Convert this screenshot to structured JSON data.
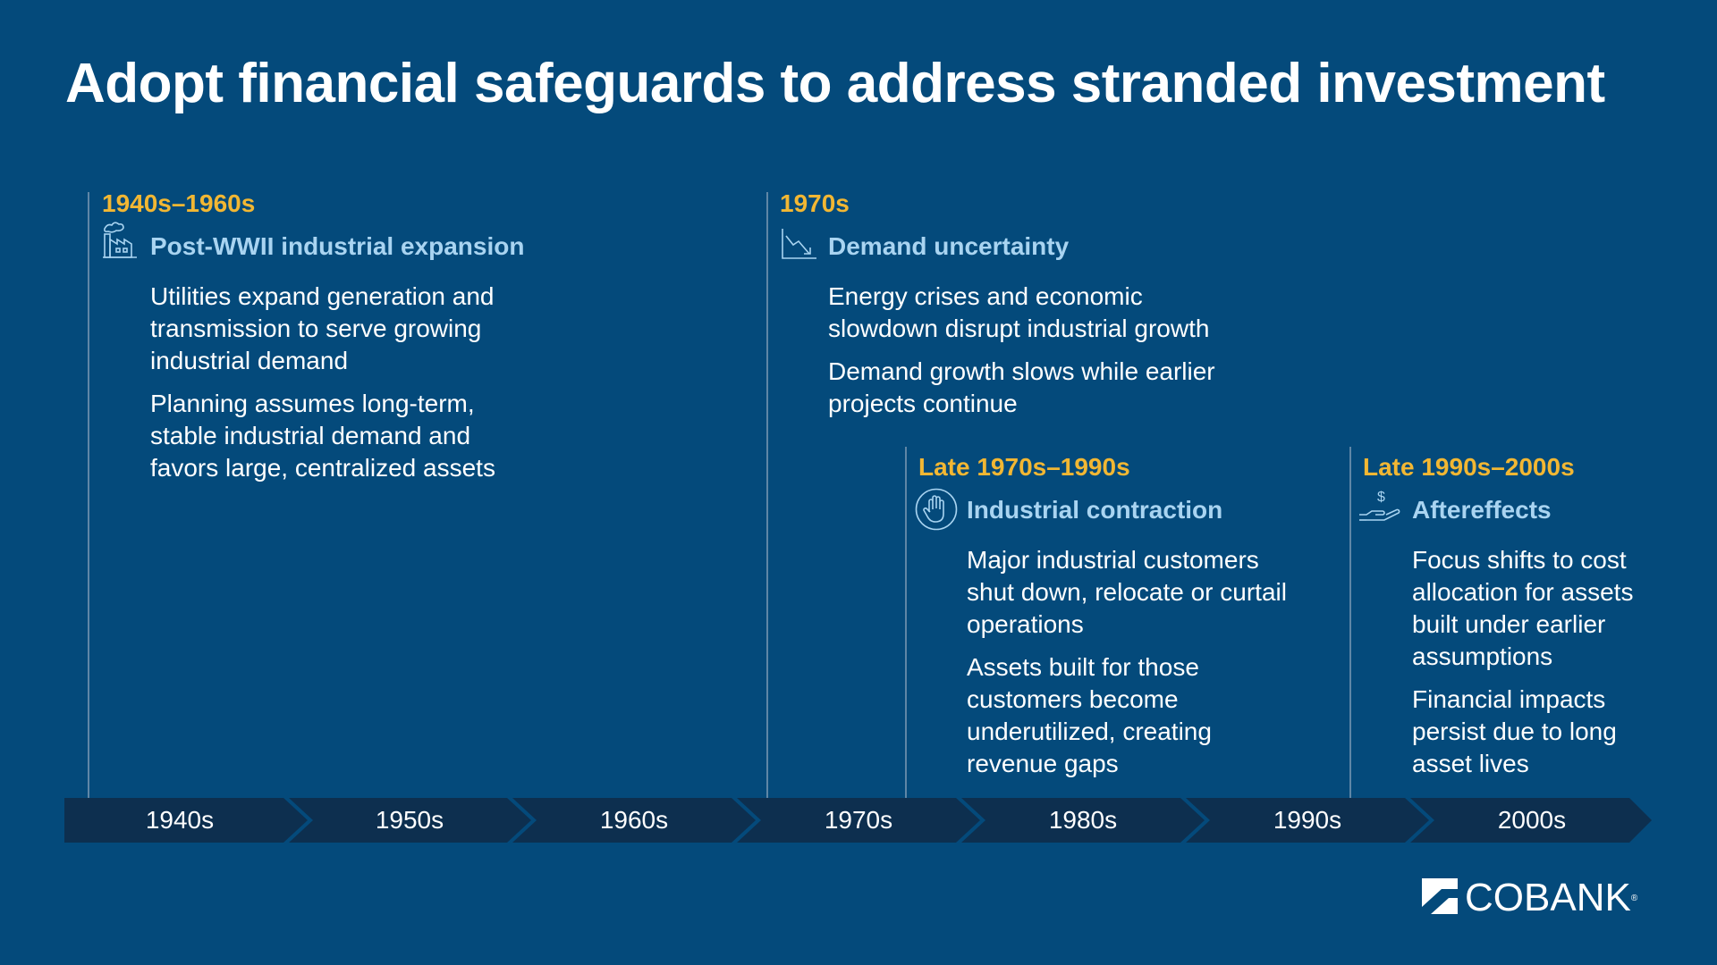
{
  "title": "Adopt financial safeguards to address stranded investment",
  "phases": [
    {
      "period": "1940s–1960s",
      "icon": "factory-icon",
      "heading": "Post-WWII industrial expansion",
      "bullets": [
        "Utilities expand generation and transmission to serve growing industrial demand",
        "Planning assumes long-term, stable industrial demand and favors large, centralized assets"
      ]
    },
    {
      "period": "1970s",
      "icon": "declining-chart-icon",
      "heading": "Demand uncertainty",
      "bullets": [
        "Energy crises and economic slowdown disrupt industrial growth",
        "Demand growth slows while earlier projects continue"
      ]
    },
    {
      "period": "Late 1970s–1990s",
      "icon": "stop-hand-icon",
      "heading": "Industrial contraction",
      "bullets": [
        "Major industrial customers shut down, relocate or curtail operations",
        "Assets built for those customers become underutilized, creating revenue gaps"
      ]
    },
    {
      "period": "Late 1990s–2000s",
      "icon": "hand-money-icon",
      "heading": "Aftereffects",
      "bullets": [
        "Focus shifts to cost allocation for assets built under earlier assumptions",
        "Financial impacts persist due to long asset lives"
      ]
    }
  ],
  "timeline": {
    "decades": [
      "1940s",
      "1950s",
      "1960s",
      "1970s",
      "1980s",
      "1990s",
      "2000s"
    ]
  },
  "logo": {
    "text": "COBANK",
    "icon": "cobank-logo-icon"
  },
  "colors": {
    "background": "#044a7b",
    "period": "#f2b733",
    "heading": "#a9d4f1",
    "timeline_band": "#0d2f4f"
  }
}
